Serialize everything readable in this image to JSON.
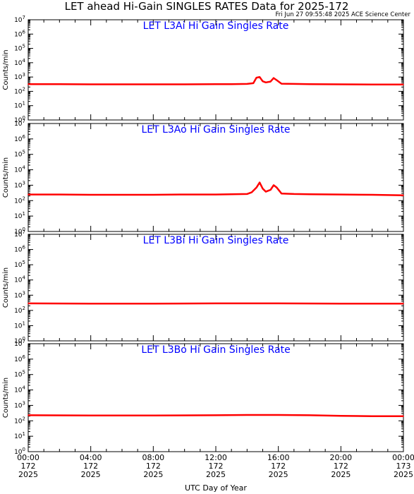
{
  "title": "LET ahead Hi-Gain SINGLES RATES Data for 2025-172",
  "subtitle": "Fri Jun 27 09:55:48 2025 ACE Science Center",
  "xlabel": "UTC Day of Year",
  "colors": {
    "series": "#ff0000",
    "panel_title": "#0000ff",
    "axis": "#000000"
  },
  "chart_data": [
    {
      "type": "line",
      "title": "LET L3Ai Hi Gain Singles Rate",
      "ylabel": "Counts/min",
      "yscale": "log",
      "ylim": [
        1,
        10000000
      ],
      "yticks": [
        "10^0",
        "10^1",
        "10^2",
        "10^3",
        "10^4",
        "10^5",
        "10^6",
        "10^7"
      ],
      "xlim": [
        0,
        24
      ],
      "x_unit": "hours UTC",
      "x": [
        0,
        2,
        4,
        6,
        8,
        10,
        12,
        13,
        14,
        14.4,
        14.6,
        14.8,
        15.0,
        15.2,
        15.5,
        15.7,
        15.9,
        16.2,
        17,
        18,
        20,
        22,
        24
      ],
      "values": [
        320,
        320,
        310,
        310,
        310,
        310,
        320,
        320,
        330,
        370,
        900,
        1000,
        500,
        420,
        480,
        850,
        600,
        340,
        330,
        320,
        310,
        300,
        300
      ]
    },
    {
      "type": "line",
      "title": "LET L3Ao Hi Gain Singles Rate",
      "ylabel": "Counts/min",
      "yscale": "log",
      "ylim": [
        1,
        10000000
      ],
      "yticks": [
        "10^0",
        "10^1",
        "10^2",
        "10^3",
        "10^4",
        "10^5",
        "10^6",
        "10^7"
      ],
      "xlim": [
        0,
        24
      ],
      "x_unit": "hours UTC",
      "x": [
        0,
        2,
        4,
        6,
        8,
        10,
        12,
        13,
        14,
        14.3,
        14.6,
        14.8,
        15.0,
        15.2,
        15.5,
        15.7,
        15.9,
        16.2,
        17,
        18,
        20,
        22,
        24
      ],
      "values": [
        250,
        250,
        240,
        240,
        240,
        250,
        250,
        260,
        270,
        350,
        700,
        1500,
        600,
        380,
        500,
        1000,
        700,
        290,
        270,
        260,
        250,
        240,
        220
      ]
    },
    {
      "type": "line",
      "title": "LET L3Bi Hi Gain Singles Rate",
      "ylabel": "Counts/min",
      "yscale": "log",
      "ylim": [
        1,
        10000000
      ],
      "yticks": [
        "10^0",
        "10^1",
        "10^2",
        "10^3",
        "10^4",
        "10^5",
        "10^6",
        "10^7"
      ],
      "xlim": [
        0,
        24
      ],
      "x_unit": "hours UTC",
      "x": [
        0,
        4,
        8,
        12,
        16,
        20,
        24
      ],
      "values": [
        290,
        280,
        280,
        290,
        290,
        280,
        280
      ]
    },
    {
      "type": "line",
      "title": "LET L3Bo Hi Gain Singles Rate",
      "ylabel": "Counts/min",
      "yscale": "log",
      "ylim": [
        1,
        10000000
      ],
      "yticks": [
        "10^0",
        "10^1",
        "10^2",
        "10^3",
        "10^4",
        "10^5",
        "10^6",
        "10^7"
      ],
      "xlim": [
        0,
        24
      ],
      "x_unit": "hours UTC",
      "x": [
        0,
        4,
        8,
        12,
        14,
        16,
        18,
        20,
        22,
        24
      ],
      "values": [
        230,
        220,
        220,
        230,
        240,
        240,
        230,
        210,
        200,
        200
      ]
    }
  ],
  "xticks": [
    {
      "time": "00:00",
      "doy": "172",
      "year": "2025"
    },
    {
      "time": "04:00",
      "doy": "172",
      "year": "2025"
    },
    {
      "time": "08:00",
      "doy": "172",
      "year": "2025"
    },
    {
      "time": "12:00",
      "doy": "172",
      "year": "2025"
    },
    {
      "time": "16:00",
      "doy": "172",
      "year": "2025"
    },
    {
      "time": "20:00",
      "doy": "172",
      "year": "2025"
    },
    {
      "time": "00:00",
      "doy": "173",
      "year": "2025"
    }
  ]
}
